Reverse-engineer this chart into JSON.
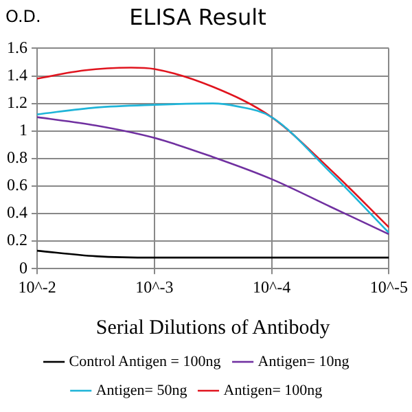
{
  "chart_data": {
    "type": "line",
    "title": "ELISA Result",
    "ylabel": "O.D.",
    "xlabel": "Serial Dilutions of Antibody",
    "log": "x",
    "xlim": [
      0.01,
      1e-05
    ],
    "xticks": [
      {
        "value": 0.01,
        "label": "10^-2"
      },
      {
        "value": 0.001,
        "label": "10^-3"
      },
      {
        "value": 0.0001,
        "label": "10^-4"
      },
      {
        "value": 1e-05,
        "label": "10^-5"
      }
    ],
    "ylim": [
      0,
      1.6
    ],
    "yticks": [
      0,
      0.2,
      0.4,
      0.6,
      0.8,
      1,
      1.2,
      1.4,
      1.6
    ],
    "grid": true,
    "legend": "bottom",
    "marker": "none",
    "line_style": "solid",
    "series": [
      {
        "name": "Control Antigen = 100ng",
        "color": "#000000",
        "x": [
          0.01,
          0.00316,
          0.001,
          0.0001,
          1e-05
        ],
        "values": [
          0.13,
          0.09,
          0.08,
          0.08,
          0.08
        ]
      },
      {
        "name": "Antigen= 10ng",
        "color": "#7030a0",
        "x": [
          0.01,
          0.00316,
          0.001,
          0.000316,
          0.0001,
          3.16e-05,
          1e-05
        ],
        "values": [
          1.1,
          1.04,
          0.95,
          0.81,
          0.65,
          0.45,
          0.25
        ]
      },
      {
        "name": "Antigen= 50ng",
        "color": "#1fb4d8",
        "x": [
          0.01,
          0.00316,
          0.001,
          0.000316,
          0.0002,
          0.0001,
          3.16e-05,
          1e-05
        ],
        "values": [
          1.12,
          1.17,
          1.19,
          1.2,
          1.18,
          1.1,
          0.7,
          0.26
        ]
      },
      {
        "name": "Antigen= 100ng",
        "color": "#e0141e",
        "x": [
          0.01,
          0.00398,
          0.00158,
          0.001,
          0.000316,
          0.0001,
          3.16e-05,
          1e-05
        ],
        "values": [
          1.38,
          1.44,
          1.46,
          1.45,
          1.32,
          1.1,
          0.72,
          0.3
        ]
      }
    ]
  }
}
